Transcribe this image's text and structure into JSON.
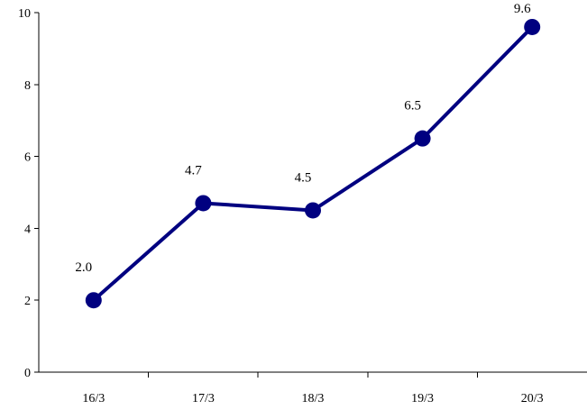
{
  "chart_data": {
    "type": "line",
    "title": "",
    "xlabel": "",
    "ylabel": "",
    "categories": [
      "16/3",
      "17/3",
      "18/3",
      "19/3",
      "20/3"
    ],
    "series": [
      {
        "values": [
          2.0,
          4.7,
          4.5,
          6.5,
          9.6
        ],
        "data_labels": [
          "2.0",
          "4.7",
          "4.5",
          "6.5",
          "9.6"
        ],
        "color": "#000080"
      }
    ],
    "ylim": [
      0,
      10
    ],
    "yticks": [
      0,
      2,
      4,
      6,
      8,
      10
    ],
    "ytick_labels": [
      "0",
      "2",
      "4",
      "6",
      "8",
      "10"
    ],
    "grid": false,
    "legend": "none"
  }
}
